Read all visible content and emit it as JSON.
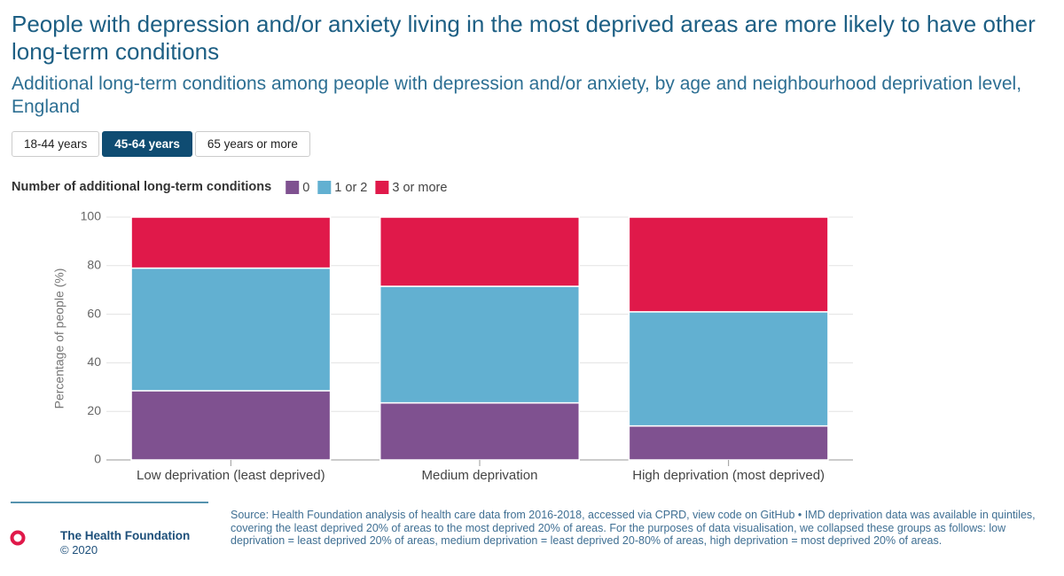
{
  "header": {
    "title": "People with depression and/or anxiety living in the most deprived areas are more likely to have other long-term conditions",
    "subtitle": "Additional long-term conditions among people with depression and/or anxiety, by age and neighbourhood deprivation level, England"
  },
  "controls": {
    "buttons": [
      "18-44 years",
      "45-64 years",
      "65 years or more"
    ],
    "selected": 1
  },
  "chart_data": {
    "type": "stacked_bar",
    "legend_title": "Number of additional long-term conditions",
    "y_label": "Percentage of people (%)",
    "categories": [
      "Low deprivation (least deprived)",
      "Medium deprivation",
      "High deprivation (most deprived)"
    ],
    "series": [
      {
        "name": "0",
        "color": "#7f5190",
        "values": [
          28.5,
          23.5,
          14
        ]
      },
      {
        "name": "1 or 2",
        "color": "#62b0d1",
        "values": [
          50.5,
          48,
          47
        ]
      },
      {
        "name": "3 or more",
        "color": "#e0194a",
        "values": [
          21,
          28.5,
          39
        ]
      }
    ],
    "ylim": [
      0,
      100
    ],
    "yticks": [
      0,
      20,
      40,
      60,
      80,
      100
    ],
    "grid": true
  },
  "footer": {
    "organisation": "The Health Foundation",
    "copyright": "© 2020",
    "source": "Source: Health Foundation analysis of health care data from 2016-2018, accessed via CPRD, view code on GitHub • IMD deprivation data was available in quintiles, covering the least deprived 20% of areas to the most deprived 20% of areas. For the purposes of data visualisation, we collapsed these groups as follows: low deprivation = least deprived 20% of areas, medium deprivation = least deprived 20-80% of areas, high deprivation = most deprived 20% of areas."
  }
}
